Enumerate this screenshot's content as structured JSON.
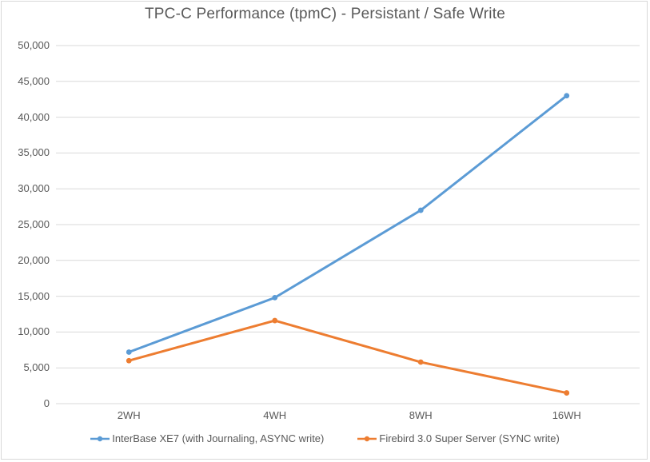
{
  "chart_data": {
    "type": "line",
    "title": "TPC-C Performance (tpmC) - Persistant / Safe Write",
    "categories": [
      "2WH",
      "4WH",
      "8WH",
      "16WH"
    ],
    "series": [
      {
        "name": "InterBase XE7 (with Journaling, ASYNC write)",
        "color": "#5B9BD5",
        "values": [
          7200,
          14800,
          27000,
          43000
        ]
      },
      {
        "name": "Firebird 3.0 Super Server (SYNC write)",
        "color": "#ED7D31",
        "values": [
          6000,
          11600,
          5800,
          1500
        ]
      }
    ],
    "xlabel": "",
    "ylabel": "",
    "ylim": [
      0,
      50000
    ],
    "ytick_step": 5000,
    "ytick_labels": [
      "0",
      "5,000",
      "10,000",
      "15,000",
      "20,000",
      "25,000",
      "30,000",
      "35,000",
      "40,000",
      "45,000",
      "50,000"
    ],
    "grid": true,
    "legend_position": "bottom",
    "marker": "circle"
  },
  "colors": {
    "background": "#FFFFFF",
    "frame_border": "#D9D9D9",
    "gridline": "#D9D9D9",
    "text": "#595959",
    "series_blue": "#5B9BD5",
    "series_orange": "#ED7D31"
  }
}
